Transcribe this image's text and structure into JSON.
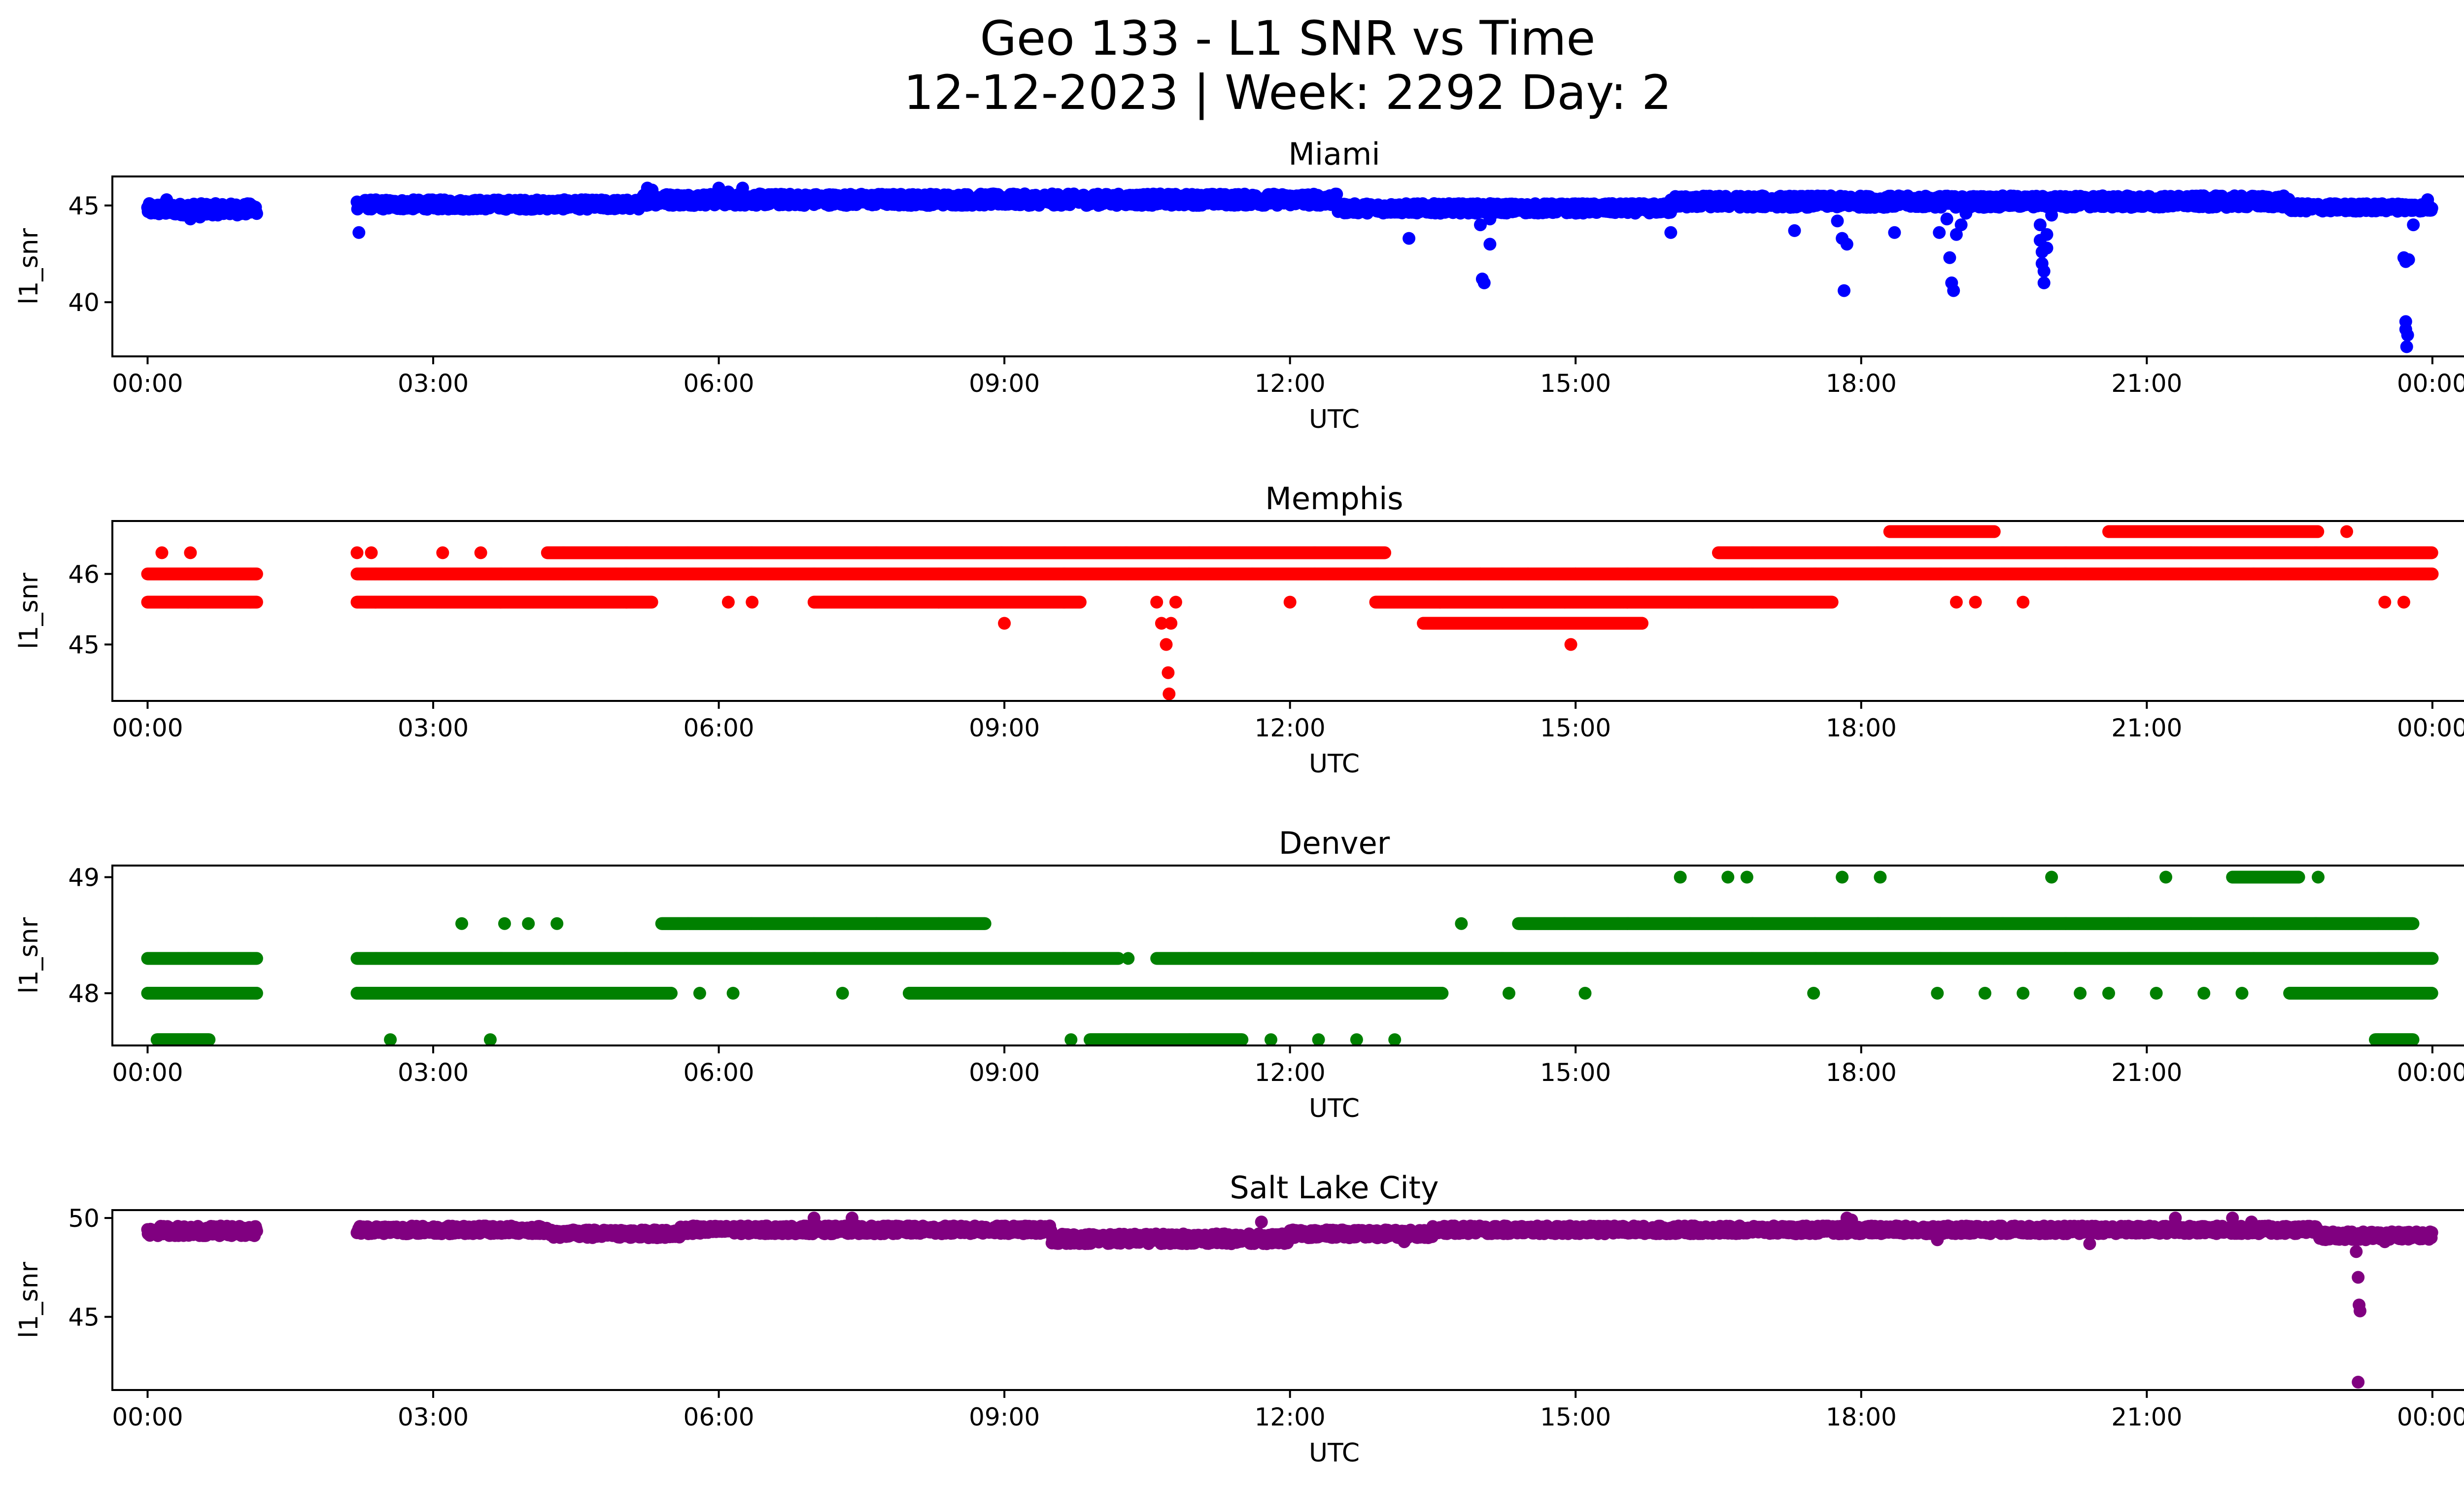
{
  "figure": {
    "title_line1": "Geo 133 - L1 SNR vs Time",
    "title_line2": "12-12-2023 | Week: 2292 Day: 2"
  },
  "chart_data": [
    {
      "type": "scatter",
      "title": "Miami",
      "xlabel": "UTC",
      "ylabel": "l1_snr",
      "color": "#0000ff",
      "xlim": [
        -0.37,
        25.3
      ],
      "ylim": [
        37.2,
        46.5
      ],
      "xticks": [
        "00:00",
        "03:00",
        "06:00",
        "09:00",
        "12:00",
        "15:00",
        "18:00",
        "21:00",
        "00:00"
      ],
      "xtick_values": [
        0,
        3,
        6,
        9,
        12,
        15,
        18,
        21,
        24
      ],
      "yticks": [
        40,
        45
      ],
      "bands": [
        {
          "x": [
            0.0,
            1.15
          ],
          "y": [
            44.5,
            45.1
          ]
        },
        {
          "x": [
            2.2,
            5.2
          ],
          "y": [
            44.8,
            45.3
          ]
        },
        {
          "x": [
            5.2,
            12.5
          ],
          "y": [
            45.0,
            45.6
          ]
        },
        {
          "x": [
            12.5,
            16.0
          ],
          "y": [
            44.6,
            45.1
          ]
        },
        {
          "x": [
            16.0,
            22.5
          ],
          "y": [
            44.9,
            45.5
          ]
        },
        {
          "x": [
            22.5,
            24.0
          ],
          "y": [
            44.7,
            45.1
          ]
        }
      ],
      "points": [
        [
          0.2,
          45.3
        ],
        [
          0.45,
          44.3
        ],
        [
          0.55,
          44.4
        ],
        [
          2.22,
          43.6
        ],
        [
          5.25,
          45.9
        ],
        [
          5.3,
          45.8
        ],
        [
          6.0,
          45.9
        ],
        [
          6.1,
          45.7
        ],
        [
          6.15,
          45.4
        ],
        [
          6.25,
          45.9
        ],
        [
          13.25,
          43.3
        ],
        [
          14.0,
          44.0
        ],
        [
          14.02,
          41.2
        ],
        [
          14.04,
          41.0
        ],
        [
          14.1,
          43.0
        ],
        [
          14.1,
          44.3
        ],
        [
          16.0,
          43.6
        ],
        [
          17.3,
          43.7
        ],
        [
          17.75,
          44.2
        ],
        [
          17.8,
          43.3
        ],
        [
          17.82,
          40.6
        ],
        [
          17.85,
          43.0
        ],
        [
          18.35,
          43.6
        ],
        [
          18.82,
          43.6
        ],
        [
          18.9,
          44.3
        ],
        [
          18.93,
          42.3
        ],
        [
          18.95,
          41.0
        ],
        [
          18.97,
          40.6
        ],
        [
          19.0,
          43.5
        ],
        [
          19.05,
          44.0
        ],
        [
          19.1,
          44.6
        ],
        [
          19.88,
          44.0
        ],
        [
          19.88,
          43.2
        ],
        [
          19.9,
          42.6
        ],
        [
          19.9,
          42.0
        ],
        [
          19.92,
          41.6
        ],
        [
          19.92,
          41.0
        ],
        [
          19.95,
          42.8
        ],
        [
          19.95,
          43.5
        ],
        [
          20.0,
          44.5
        ],
        [
          23.7,
          42.3
        ],
        [
          23.72,
          42.1
        ],
        [
          23.75,
          42.2
        ],
        [
          23.72,
          39.0
        ],
        [
          23.72,
          38.6
        ],
        [
          23.74,
          38.3
        ],
        [
          23.73,
          37.7
        ],
        [
          23.8,
          44.0
        ],
        [
          23.95,
          45.3
        ]
      ]
    },
    {
      "type": "scatter",
      "title": "Memphis",
      "xlabel": "UTC",
      "ylabel": "l1_snr",
      "color": "#ff0000",
      "xlim": [
        -0.37,
        25.3
      ],
      "ylim": [
        44.2,
        46.75
      ],
      "xticks": [
        "00:00",
        "03:00",
        "06:00",
        "09:00",
        "12:00",
        "15:00",
        "18:00",
        "21:00",
        "00:00"
      ],
      "xtick_values": [
        0,
        3,
        6,
        9,
        12,
        15,
        18,
        21,
        24
      ],
      "yticks": [
        45,
        46
      ],
      "bands": [
        {
          "x": [
            0.0,
            1.15
          ],
          "y": [
            46.0,
            46.0
          ]
        },
        {
          "x": [
            0.0,
            1.15
          ],
          "y": [
            45.6,
            45.6
          ]
        },
        {
          "x": [
            2.2,
            24.0
          ],
          "y": [
            46.0,
            46.0
          ]
        },
        {
          "x": [
            2.2,
            5.3
          ],
          "y": [
            45.6,
            45.6
          ]
        },
        {
          "x": [
            4.2,
            13.0
          ],
          "y": [
            46.3,
            46.3
          ]
        },
        {
          "x": [
            7.0,
            9.8
          ],
          "y": [
            45.6,
            45.6
          ]
        },
        {
          "x": [
            12.9,
            17.7
          ],
          "y": [
            45.6,
            45.6
          ]
        },
        {
          "x": [
            13.4,
            15.7
          ],
          "y": [
            45.3,
            45.3
          ]
        },
        {
          "x": [
            16.5,
            24.0
          ],
          "y": [
            46.3,
            46.3
          ]
        },
        {
          "x": [
            20.6,
            22.8
          ],
          "y": [
            46.6,
            46.6
          ]
        },
        {
          "x": [
            18.3,
            19.4
          ],
          "y": [
            46.6,
            46.6
          ]
        }
      ],
      "points": [
        [
          0.15,
          46.3
        ],
        [
          0.45,
          46.3
        ],
        [
          2.2,
          46.3
        ],
        [
          2.35,
          46.3
        ],
        [
          3.1,
          46.3
        ],
        [
          3.5,
          46.3
        ],
        [
          6.1,
          45.6
        ],
        [
          6.35,
          45.6
        ],
        [
          9.0,
          45.3
        ],
        [
          10.6,
          45.6
        ],
        [
          10.65,
          45.3
        ],
        [
          10.7,
          45.0
        ],
        [
          10.72,
          44.6
        ],
        [
          10.73,
          44.3
        ],
        [
          10.75,
          45.3
        ],
        [
          10.8,
          45.6
        ],
        [
          12.0,
          45.6
        ],
        [
          14.0,
          46.0
        ],
        [
          14.5,
          46.0
        ],
        [
          14.95,
          45.0
        ],
        [
          15.0,
          46.0
        ],
        [
          19.0,
          45.6
        ],
        [
          19.2,
          45.6
        ],
        [
          19.7,
          45.6
        ],
        [
          21.1,
          46.6
        ],
        [
          23.1,
          46.6
        ],
        [
          23.5,
          45.6
        ],
        [
          23.7,
          45.6
        ]
      ]
    },
    {
      "type": "scatter",
      "title": "Denver",
      "xlabel": "UTC",
      "ylabel": "l1_snr",
      "color": "#008000",
      "xlim": [
        -0.37,
        25.3
      ],
      "ylim": [
        47.55,
        49.1
      ],
      "xticks": [
        "00:00",
        "03:00",
        "06:00",
        "09:00",
        "12:00",
        "15:00",
        "18:00",
        "21:00",
        "00:00"
      ],
      "xtick_values": [
        0,
        3,
        6,
        9,
        12,
        15,
        18,
        21,
        24
      ],
      "yticks": [
        48,
        49
      ],
      "bands": [
        {
          "x": [
            0.0,
            1.15
          ],
          "y": [
            48.3,
            48.3
          ]
        },
        {
          "x": [
            0.0,
            1.15
          ],
          "y": [
            48.0,
            48.0
          ]
        },
        {
          "x": [
            0.1,
            0.65
          ],
          "y": [
            47.6,
            47.6
          ]
        },
        {
          "x": [
            2.2,
            10.2
          ],
          "y": [
            48.3,
            48.3
          ]
        },
        {
          "x": [
            10.6,
            24.0
          ],
          "y": [
            48.3,
            48.3
          ]
        },
        {
          "x": [
            2.2,
            5.5
          ],
          "y": [
            48.0,
            48.0
          ]
        },
        {
          "x": [
            8.0,
            13.6
          ],
          "y": [
            48.0,
            48.0
          ]
        },
        {
          "x": [
            5.4,
            8.8
          ],
          "y": [
            48.6,
            48.6
          ]
        },
        {
          "x": [
            14.4,
            23.8
          ],
          "y": [
            48.6,
            48.6
          ]
        },
        {
          "x": [
            9.9,
            11.5
          ],
          "y": [
            47.6,
            47.6
          ]
        },
        {
          "x": [
            22.5,
            24.0
          ],
          "y": [
            48.0,
            48.0
          ]
        },
        {
          "x": [
            21.9,
            22.6
          ],
          "y": [
            49.0,
            49.0
          ]
        },
        {
          "x": [
            23.4,
            23.8
          ],
          "y": [
            47.6,
            47.6
          ]
        }
      ],
      "points": [
        [
          2.55,
          47.6
        ],
        [
          3.6,
          47.6
        ],
        [
          3.3,
          48.6
        ],
        [
          3.75,
          48.6
        ],
        [
          4.0,
          48.6
        ],
        [
          4.3,
          48.6
        ],
        [
          5.8,
          48.0
        ],
        [
          6.15,
          48.0
        ],
        [
          7.3,
          48.0
        ],
        [
          10.3,
          48.3
        ],
        [
          9.7,
          47.6
        ],
        [
          11.8,
          47.6
        ],
        [
          12.3,
          47.6
        ],
        [
          12.7,
          47.6
        ],
        [
          13.1,
          47.6
        ],
        [
          13.8,
          48.6
        ],
        [
          14.3,
          48.0
        ],
        [
          15.1,
          48.0
        ],
        [
          16.1,
          49.0
        ],
        [
          16.6,
          49.0
        ],
        [
          16.8,
          49.0
        ],
        [
          17.5,
          48.0
        ],
        [
          17.8,
          49.0
        ],
        [
          18.2,
          49.0
        ],
        [
          18.8,
          48.0
        ],
        [
          19.3,
          48.0
        ],
        [
          19.7,
          48.0
        ],
        [
          20.0,
          49.0
        ],
        [
          20.3,
          48.0
        ],
        [
          20.6,
          48.0
        ],
        [
          21.1,
          48.0
        ],
        [
          21.2,
          49.0
        ],
        [
          21.6,
          48.0
        ],
        [
          22.0,
          48.0
        ],
        [
          22.5,
          49.0
        ],
        [
          22.8,
          49.0
        ]
      ]
    },
    {
      "type": "scatter",
      "title": "Salt Lake City",
      "xlabel": "UTC",
      "ylabel": "l1_snr",
      "color": "#800080",
      "xlim": [
        -0.37,
        25.3
      ],
      "ylim": [
        41.3,
        50.4
      ],
      "xticks": [
        "00:00",
        "03:00",
        "06:00",
        "09:00",
        "12:00",
        "15:00",
        "18:00",
        "21:00",
        "00:00"
      ],
      "xtick_values": [
        0,
        3,
        6,
        9,
        12,
        15,
        18,
        21,
        24
      ],
      "yticks": [
        45,
        50
      ],
      "bands": [
        {
          "x": [
            0.0,
            1.15
          ],
          "y": [
            49.1,
            49.6
          ]
        },
        {
          "x": [
            2.2,
            4.2
          ],
          "y": [
            49.2,
            49.6
          ]
        },
        {
          "x": [
            4.2,
            5.6
          ],
          "y": [
            49.0,
            49.4
          ]
        },
        {
          "x": [
            5.6,
            9.5
          ],
          "y": [
            49.2,
            49.6
          ]
        },
        {
          "x": [
            9.5,
            12.0
          ],
          "y": [
            48.7,
            49.2
          ]
        },
        {
          "x": [
            12.0,
            13.5
          ],
          "y": [
            49.0,
            49.4
          ]
        },
        {
          "x": [
            13.5,
            22.8
          ],
          "y": [
            49.2,
            49.6
          ]
        },
        {
          "x": [
            22.8,
            24.0
          ],
          "y": [
            48.9,
            49.3
          ]
        }
      ],
      "points": [
        [
          7.0,
          50.0
        ],
        [
          7.4,
          50.0
        ],
        [
          11.7,
          49.8
        ],
        [
          13.2,
          48.8
        ],
        [
          17.85,
          50.0
        ],
        [
          17.9,
          49.9
        ],
        [
          18.8,
          48.9
        ],
        [
          20.4,
          48.7
        ],
        [
          21.3,
          50.0
        ],
        [
          21.9,
          50.0
        ],
        [
          22.1,
          49.8
        ],
        [
          23.3,
          48.9
        ],
        [
          23.5,
          48.8
        ],
        [
          23.2,
          48.3
        ],
        [
          23.22,
          47.0
        ],
        [
          23.23,
          45.6
        ],
        [
          23.24,
          45.3
        ],
        [
          23.22,
          41.7
        ]
      ]
    }
  ]
}
